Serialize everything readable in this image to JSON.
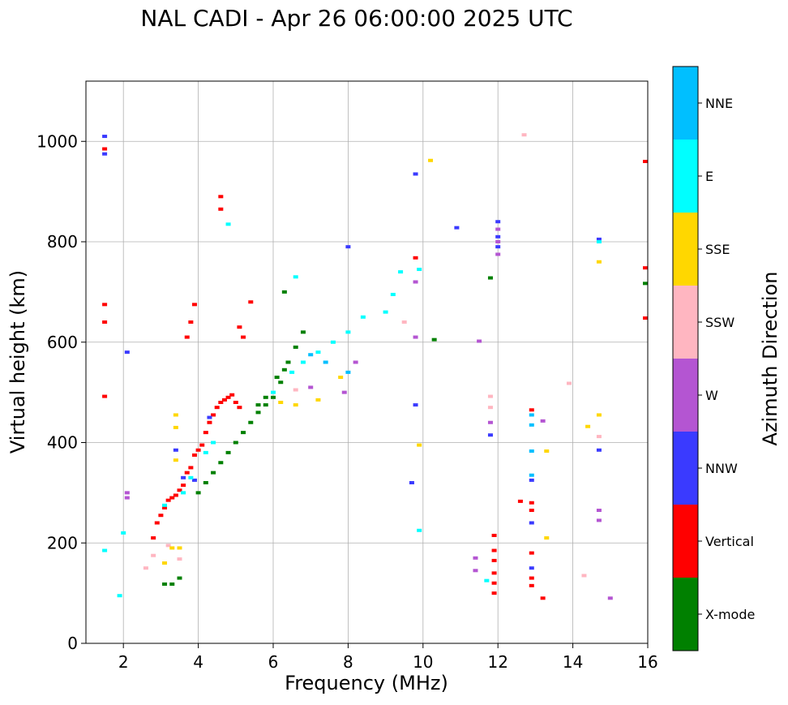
{
  "chart_data": {
    "type": "scatter",
    "title": "NAL CADI - Apr 26 06:00:00 2025 UTC",
    "xlabel": "Frequency (MHz)",
    "ylabel": "Virtual height (km)",
    "xlim": [
      1,
      16
    ],
    "ylim": [
      0,
      1120
    ],
    "xticks": [
      2,
      4,
      6,
      8,
      10,
      12,
      14,
      16
    ],
    "yticks": [
      0,
      200,
      400,
      600,
      800,
      1000
    ],
    "grid": true,
    "colorbar": {
      "label": "Azimuth Direction",
      "categories": [
        {
          "name": "X-mode",
          "color": "#008000"
        },
        {
          "name": "Vertical",
          "color": "#ff0000"
        },
        {
          "name": "NNW",
          "color": "#3a3aff"
        },
        {
          "name": "W",
          "color": "#b455d2"
        },
        {
          "name": "SSW",
          "color": "#ffb6c1"
        },
        {
          "name": "SSE",
          "color": "#ffd700"
        },
        {
          "name": "E",
          "color": "#00ffff"
        },
        {
          "name": "NNE",
          "color": "#00bfff"
        }
      ]
    },
    "series": [
      {
        "name": "Vertical",
        "points": [
          [
            1.5,
            675
          ],
          [
            1.5,
            640
          ],
          [
            1.5,
            492
          ],
          [
            1.5,
            985
          ],
          [
            2.8,
            210
          ],
          [
            2.9,
            240
          ],
          [
            3.0,
            255
          ],
          [
            3.1,
            270
          ],
          [
            3.2,
            285
          ],
          [
            3.3,
            290
          ],
          [
            3.4,
            295
          ],
          [
            3.5,
            305
          ],
          [
            3.6,
            315
          ],
          [
            3.7,
            340
          ],
          [
            3.8,
            350
          ],
          [
            3.9,
            375
          ],
          [
            4.0,
            385
          ],
          [
            4.1,
            395
          ],
          [
            4.2,
            420
          ],
          [
            4.3,
            440
          ],
          [
            4.4,
            455
          ],
          [
            4.5,
            470
          ],
          [
            4.6,
            480
          ],
          [
            4.7,
            485
          ],
          [
            4.8,
            490
          ],
          [
            4.9,
            495
          ],
          [
            5.0,
            480
          ],
          [
            5.1,
            470
          ],
          [
            3.7,
            610
          ],
          [
            3.8,
            640
          ],
          [
            3.9,
            675
          ],
          [
            4.6,
            890
          ],
          [
            4.6,
            865
          ],
          [
            5.1,
            630
          ],
          [
            5.2,
            610
          ],
          [
            5.4,
            680
          ],
          [
            11.9,
            215
          ],
          [
            11.9,
            185
          ],
          [
            11.9,
            165
          ],
          [
            11.9,
            140
          ],
          [
            11.9,
            120
          ],
          [
            11.9,
            100
          ],
          [
            12.9,
            465
          ],
          [
            12.9,
            280
          ],
          [
            12.9,
            265
          ],
          [
            12.9,
            180
          ],
          [
            12.9,
            130
          ],
          [
            12.9,
            115
          ],
          [
            12.6,
            283
          ],
          [
            13.2,
            90
          ],
          [
            16.0,
            960
          ],
          [
            16.0,
            748
          ],
          [
            16.0,
            648
          ],
          [
            9.8,
            768
          ]
        ]
      },
      {
        "name": "X-mode",
        "points": [
          [
            3.1,
            118
          ],
          [
            3.3,
            118
          ],
          [
            3.5,
            130
          ],
          [
            4.0,
            300
          ],
          [
            4.2,
            320
          ],
          [
            4.4,
            340
          ],
          [
            4.6,
            360
          ],
          [
            4.8,
            380
          ],
          [
            5.0,
            400
          ],
          [
            5.2,
            420
          ],
          [
            5.4,
            440
          ],
          [
            5.6,
            460
          ],
          [
            5.8,
            475
          ],
          [
            6.0,
            490
          ],
          [
            6.2,
            520
          ],
          [
            6.4,
            560
          ],
          [
            6.6,
            590
          ],
          [
            6.8,
            620
          ],
          [
            5.6,
            475
          ],
          [
            5.8,
            490
          ],
          [
            6.1,
            530
          ],
          [
            6.3,
            545
          ],
          [
            6.3,
            700
          ],
          [
            10.3,
            605
          ],
          [
            11.8,
            728
          ],
          [
            16.0,
            717
          ]
        ]
      },
      {
        "name": "NNW",
        "points": [
          [
            1.5,
            1010
          ],
          [
            1.5,
            975
          ],
          [
            2.1,
            580
          ],
          [
            3.4,
            385
          ],
          [
            3.6,
            330
          ],
          [
            3.9,
            325
          ],
          [
            4.3,
            450
          ],
          [
            8.0,
            790
          ],
          [
            9.7,
            320
          ],
          [
            9.8,
            475
          ],
          [
            9.8,
            935
          ],
          [
            10.9,
            828
          ],
          [
            12.0,
            840
          ],
          [
            12.0,
            810
          ],
          [
            12.0,
            790
          ],
          [
            11.8,
            415
          ],
          [
            12.9,
            325
          ],
          [
            12.9,
            240
          ],
          [
            12.9,
            150
          ],
          [
            14.7,
            805
          ],
          [
            14.7,
            385
          ]
        ]
      },
      {
        "name": "W",
        "points": [
          [
            2.1,
            300
          ],
          [
            2.1,
            290
          ],
          [
            7.0,
            510
          ],
          [
            7.9,
            500
          ],
          [
            8.2,
            560
          ],
          [
            9.8,
            610
          ],
          [
            11.5,
            602
          ],
          [
            11.4,
            170
          ],
          [
            11.4,
            145
          ],
          [
            11.8,
            440
          ],
          [
            12.0,
            825
          ],
          [
            12.0,
            800
          ],
          [
            12.0,
            775
          ],
          [
            13.2,
            443
          ],
          [
            14.7,
            265
          ],
          [
            14.7,
            245
          ],
          [
            15.0,
            90
          ],
          [
            9.8,
            720
          ]
        ]
      },
      {
        "name": "SSW",
        "points": [
          [
            2.6,
            150
          ],
          [
            2.8,
            175
          ],
          [
            3.2,
            195
          ],
          [
            3.5,
            168
          ],
          [
            9.5,
            640
          ],
          [
            11.8,
            492
          ],
          [
            11.8,
            470
          ],
          [
            12.7,
            1013
          ],
          [
            14.3,
            135
          ],
          [
            14.7,
            412
          ],
          [
            13.9,
            518
          ],
          [
            6.6,
            505
          ]
        ]
      },
      {
        "name": "SSE",
        "points": [
          [
            3.4,
            455
          ],
          [
            3.4,
            430
          ],
          [
            3.4,
            365
          ],
          [
            3.3,
            190
          ],
          [
            3.5,
            190
          ],
          [
            3.1,
            160
          ],
          [
            6.2,
            480
          ],
          [
            6.6,
            475
          ],
          [
            7.2,
            485
          ],
          [
            10.2,
            962
          ],
          [
            9.9,
            395
          ],
          [
            13.3,
            210
          ],
          [
            13.3,
            383
          ],
          [
            14.4,
            432
          ],
          [
            14.7,
            455
          ],
          [
            14.7,
            760
          ],
          [
            7.8,
            530
          ]
        ]
      },
      {
        "name": "E",
        "points": [
          [
            1.5,
            185
          ],
          [
            2.0,
            220
          ],
          [
            1.9,
            95
          ],
          [
            3.1,
            275
          ],
          [
            3.6,
            300
          ],
          [
            3.8,
            330
          ],
          [
            4.2,
            380
          ],
          [
            4.4,
            400
          ],
          [
            6.0,
            500
          ],
          [
            6.5,
            540
          ],
          [
            6.8,
            560
          ],
          [
            7.2,
            580
          ],
          [
            7.6,
            600
          ],
          [
            8.0,
            620
          ],
          [
            8.4,
            650
          ],
          [
            9.0,
            660
          ],
          [
            9.2,
            695
          ],
          [
            9.4,
            740
          ],
          [
            9.9,
            745
          ],
          [
            9.9,
            225
          ],
          [
            11.7,
            125
          ],
          [
            14.7,
            800
          ],
          [
            4.8,
            835
          ],
          [
            6.6,
            730
          ]
        ]
      },
      {
        "name": "NNE",
        "points": [
          [
            12.9,
            455
          ],
          [
            12.9,
            435
          ],
          [
            12.9,
            383
          ],
          [
            12.9,
            335
          ],
          [
            7.0,
            575
          ],
          [
            7.4,
            560
          ],
          [
            8.0,
            540
          ]
        ]
      }
    ]
  }
}
